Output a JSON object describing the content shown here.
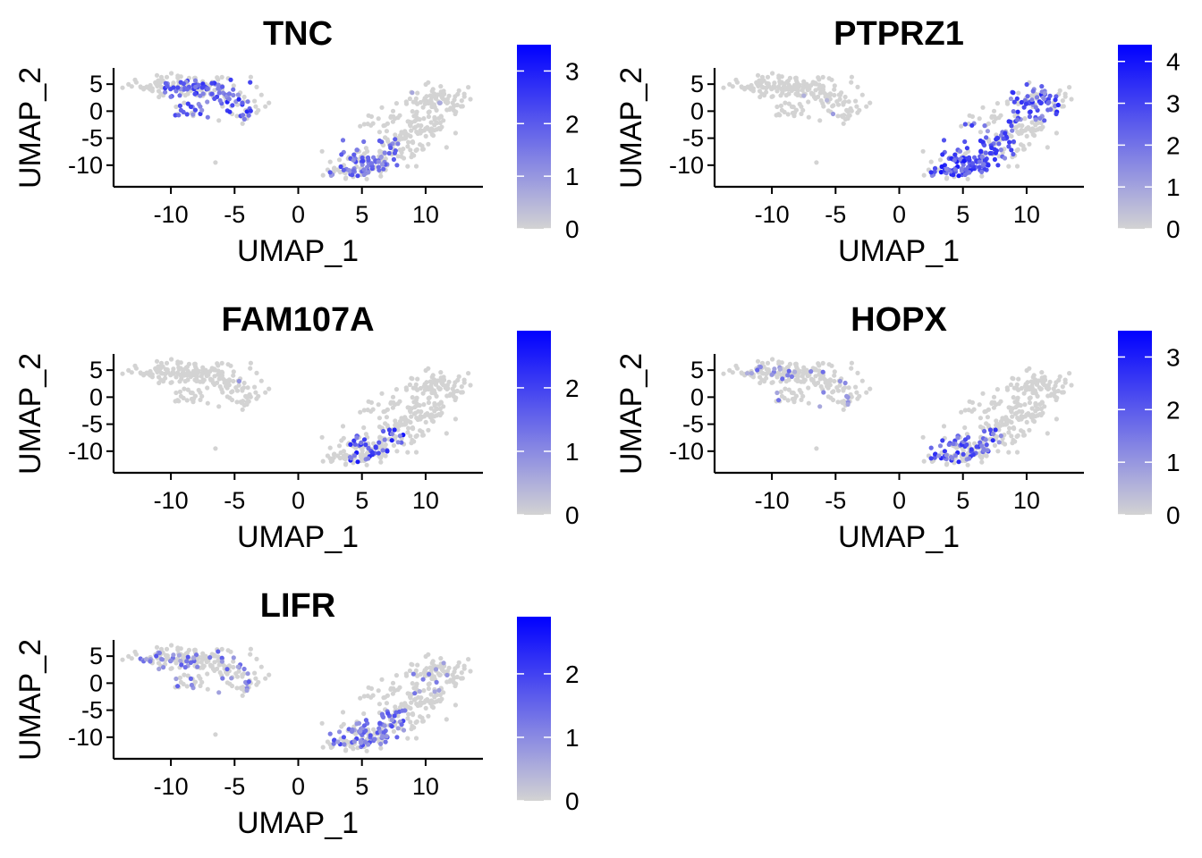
{
  "chart_data": [
    {
      "type": "scatter",
      "title": "TNC",
      "xlabel": "UMAP_1",
      "ylabel": "UMAP_2",
      "xlim": [
        -14.5,
        14.5
      ],
      "ylim": [
        -14,
        8
      ],
      "x_ticks": [
        -10,
        -5,
        0,
        5,
        10
      ],
      "y_ticks": [
        5,
        0,
        -5,
        -10
      ],
      "colorbar": {
        "min": 0,
        "max": 3.5,
        "ticks": [
          0,
          1,
          2,
          3
        ],
        "low_color": "#d3d3d3",
        "high_color": "#0000ff"
      },
      "hotspots": [
        {
          "cluster": "left",
          "x": [
            -10.5,
            -3.5
          ],
          "y": [
            -1.5,
            6
          ],
          "level": 0.55,
          "frac": 0.55
        },
        {
          "cluster": "lower_right",
          "x": [
            2.5,
            8
          ],
          "y": [
            -12,
            -5
          ],
          "level": 0.45,
          "frac": 0.5
        },
        {
          "cluster": "upper_right",
          "x": [
            8,
            12
          ],
          "y": [
            -2,
            4
          ],
          "level": 0.15,
          "frac": 0.05
        }
      ]
    },
    {
      "type": "scatter",
      "title": "PTPRZ1",
      "xlabel": "UMAP_1",
      "ylabel": "UMAP_2",
      "xlim": [
        -14.5,
        14.5
      ],
      "ylim": [
        -14,
        8
      ],
      "x_ticks": [
        -10,
        -5,
        0,
        5,
        10
      ],
      "y_ticks": [
        5,
        0,
        -5,
        -10
      ],
      "colorbar": {
        "min": 0,
        "max": 4.4,
        "ticks": [
          0,
          1,
          2,
          3,
          4
        ],
        "low_color": "#d3d3d3",
        "high_color": "#0000ff"
      },
      "hotspots": [
        {
          "cluster": "upper_right",
          "x": [
            8,
            12.5
          ],
          "y": [
            -2,
            5
          ],
          "level": 0.55,
          "frac": 0.75
        },
        {
          "cluster": "lower_right",
          "x": [
            2.5,
            8.5
          ],
          "y": [
            -12,
            -5
          ],
          "level": 0.6,
          "frac": 0.8
        },
        {
          "cluster": "bridge",
          "x": [
            5,
            9
          ],
          "y": [
            -8,
            -2
          ],
          "level": 0.5,
          "frac": 0.7
        },
        {
          "cluster": "left",
          "x": [
            -9,
            -4
          ],
          "y": [
            -1,
            3
          ],
          "level": 0.2,
          "frac": 0.05
        }
      ]
    },
    {
      "type": "scatter",
      "title": "FAM107A",
      "xlabel": "UMAP_1",
      "ylabel": "UMAP_2",
      "xlim": [
        -14.5,
        14.5
      ],
      "ylim": [
        -14,
        8
      ],
      "x_ticks": [
        -10,
        -5,
        0,
        5,
        10
      ],
      "y_ticks": [
        5,
        0,
        -5,
        -10
      ],
      "colorbar": {
        "min": 0,
        "max": 2.9,
        "ticks": [
          0,
          1,
          2
        ],
        "low_color": "#d3d3d3",
        "high_color": "#0000ff"
      },
      "hotspots": [
        {
          "cluster": "lower_right",
          "x": [
            4,
            8.5
          ],
          "y": [
            -12,
            -6
          ],
          "level": 0.6,
          "frac": 0.45
        },
        {
          "cluster": "left",
          "x": [
            -9,
            -4
          ],
          "y": [
            -2,
            4
          ],
          "level": 0.35,
          "frac": 0.02
        }
      ]
    },
    {
      "type": "scatter",
      "title": "HOPX",
      "xlabel": "UMAP_1",
      "ylabel": "UMAP_2",
      "xlim": [
        -14.5,
        14.5
      ],
      "ylim": [
        -14,
        8
      ],
      "x_ticks": [
        -10,
        -5,
        0,
        5,
        10
      ],
      "y_ticks": [
        5,
        0,
        -5,
        -10
      ],
      "colorbar": {
        "min": 0,
        "max": 3.5,
        "ticks": [
          0,
          1,
          2,
          3
        ],
        "low_color": "#d3d3d3",
        "high_color": "#0000ff"
      },
      "hotspots": [
        {
          "cluster": "lower_right",
          "x": [
            2.5,
            8
          ],
          "y": [
            -12,
            -6
          ],
          "level": 0.55,
          "frac": 0.5
        },
        {
          "cluster": "left",
          "x": [
            -12,
            -4
          ],
          "y": [
            -2,
            6
          ],
          "level": 0.35,
          "frac": 0.18
        }
      ]
    },
    {
      "type": "scatter",
      "title": "LIFR",
      "xlabel": "UMAP_1",
      "ylabel": "UMAP_2",
      "xlim": [
        -14.5,
        14.5
      ],
      "ylim": [
        -14,
        8
      ],
      "x_ticks": [
        -10,
        -5,
        0,
        5,
        10
      ],
      "y_ticks": [
        5,
        0,
        -5,
        -10
      ],
      "colorbar": {
        "min": 0,
        "max": 2.9,
        "ticks": [
          0,
          1,
          2
        ],
        "low_color": "#d3d3d3",
        "high_color": "#0000ff"
      },
      "hotspots": [
        {
          "cluster": "left",
          "x": [
            -12.5,
            -3.5
          ],
          "y": [
            -2,
            6
          ],
          "level": 0.4,
          "frac": 0.3
        },
        {
          "cluster": "lower_right",
          "x": [
            2.5,
            8.5
          ],
          "y": [
            -12,
            -5
          ],
          "level": 0.45,
          "frac": 0.5
        },
        {
          "cluster": "upper_right",
          "x": [
            8,
            12
          ],
          "y": [
            -2,
            4
          ],
          "level": 0.35,
          "frac": 0.08
        }
      ]
    }
  ]
}
